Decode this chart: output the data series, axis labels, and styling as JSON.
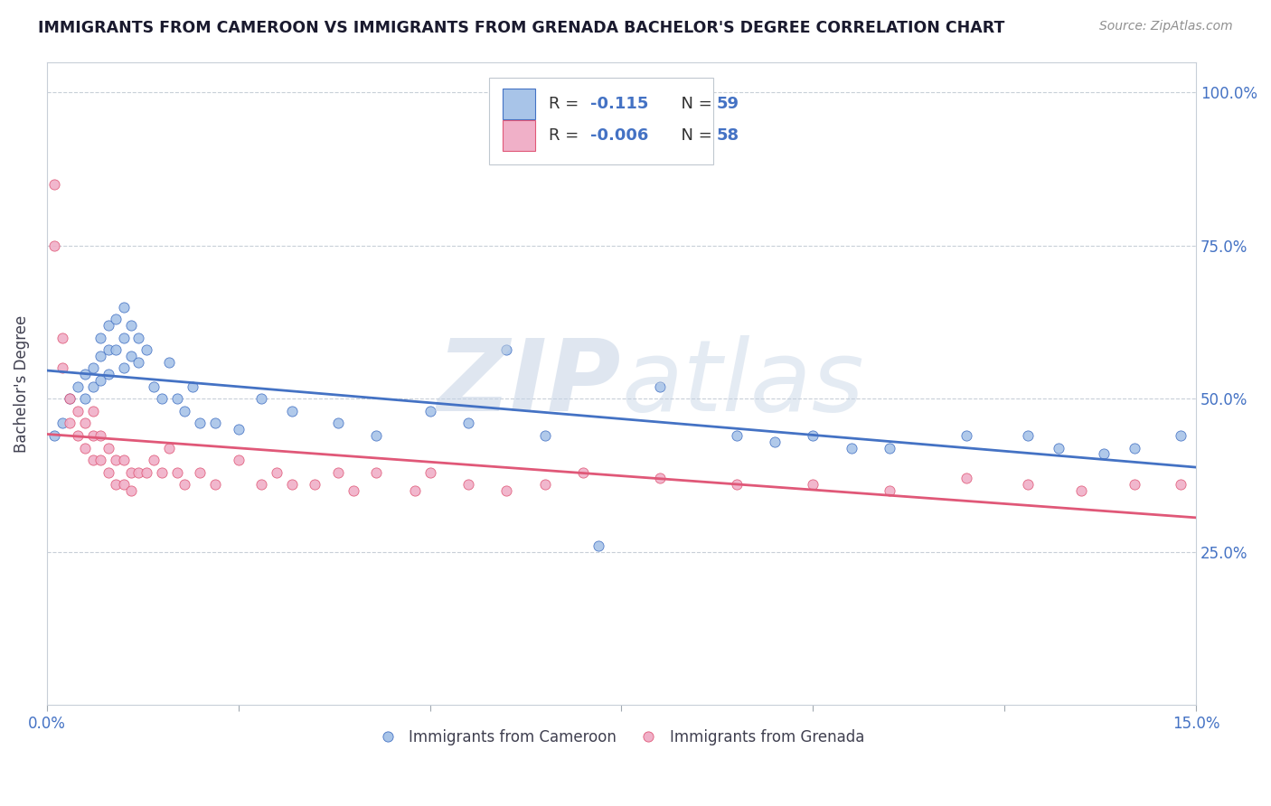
{
  "title": "IMMIGRANTS FROM CAMEROON VS IMMIGRANTS FROM GRENADA BACHELOR'S DEGREE CORRELATION CHART",
  "source": "Source: ZipAtlas.com",
  "ylabel": "Bachelor's Degree",
  "xlim": [
    0.0,
    0.15
  ],
  "ylim": [
    0.0,
    1.05
  ],
  "xticks": [
    0.0,
    0.025,
    0.05,
    0.075,
    0.1,
    0.125,
    0.15
  ],
  "xticklabels": [
    "0.0%",
    "",
    "",
    "",
    "",
    "",
    "15.0%"
  ],
  "ytick_right_labels": [
    "25.0%",
    "50.0%",
    "75.0%",
    "100.0%"
  ],
  "color_cameroon": "#a8c4e8",
  "color_grenada": "#f0b0c8",
  "line_color_cameroon": "#4472c4",
  "line_color_grenada": "#e05878",
  "background_color": "#ffffff",
  "grid_color": "#c8cfd8",
  "cameroon_x": [
    0.001,
    0.002,
    0.003,
    0.004,
    0.005,
    0.005,
    0.006,
    0.006,
    0.007,
    0.007,
    0.007,
    0.008,
    0.008,
    0.008,
    0.009,
    0.009,
    0.01,
    0.01,
    0.01,
    0.011,
    0.011,
    0.012,
    0.012,
    0.013,
    0.014,
    0.015,
    0.016,
    0.017,
    0.018,
    0.019,
    0.02,
    0.022,
    0.025,
    0.028,
    0.032,
    0.038,
    0.043,
    0.05,
    0.055,
    0.06,
    0.065,
    0.072,
    0.08,
    0.09,
    0.095,
    0.1,
    0.105,
    0.11,
    0.12,
    0.128,
    0.132,
    0.138,
    0.142,
    0.148
  ],
  "cameroon_y": [
    0.44,
    0.46,
    0.5,
    0.52,
    0.54,
    0.5,
    0.55,
    0.52,
    0.6,
    0.57,
    0.53,
    0.62,
    0.58,
    0.54,
    0.63,
    0.58,
    0.65,
    0.6,
    0.55,
    0.62,
    0.57,
    0.6,
    0.56,
    0.58,
    0.52,
    0.5,
    0.56,
    0.5,
    0.48,
    0.52,
    0.46,
    0.46,
    0.45,
    0.5,
    0.48,
    0.46,
    0.44,
    0.48,
    0.46,
    0.58,
    0.44,
    0.26,
    0.52,
    0.44,
    0.43,
    0.44,
    0.42,
    0.42,
    0.44,
    0.44,
    0.42,
    0.41,
    0.42,
    0.44
  ],
  "grenada_x": [
    0.001,
    0.001,
    0.002,
    0.002,
    0.003,
    0.003,
    0.004,
    0.004,
    0.005,
    0.005,
    0.006,
    0.006,
    0.006,
    0.007,
    0.007,
    0.008,
    0.008,
    0.009,
    0.009,
    0.01,
    0.01,
    0.011,
    0.011,
    0.012,
    0.013,
    0.014,
    0.015,
    0.016,
    0.017,
    0.018,
    0.02,
    0.022,
    0.025,
    0.028,
    0.03,
    0.032,
    0.035,
    0.038,
    0.04,
    0.043,
    0.048,
    0.05,
    0.055,
    0.06,
    0.065,
    0.07,
    0.08,
    0.09,
    0.1,
    0.11,
    0.12,
    0.128,
    0.135,
    0.142,
    0.148
  ],
  "grenada_y": [
    0.85,
    0.75,
    0.6,
    0.55,
    0.5,
    0.46,
    0.48,
    0.44,
    0.46,
    0.42,
    0.48,
    0.44,
    0.4,
    0.44,
    0.4,
    0.42,
    0.38,
    0.4,
    0.36,
    0.4,
    0.36,
    0.38,
    0.35,
    0.38,
    0.38,
    0.4,
    0.38,
    0.42,
    0.38,
    0.36,
    0.38,
    0.36,
    0.4,
    0.36,
    0.38,
    0.36,
    0.36,
    0.38,
    0.35,
    0.38,
    0.35,
    0.38,
    0.36,
    0.35,
    0.36,
    0.38,
    0.37,
    0.36,
    0.36,
    0.35,
    0.37,
    0.36,
    0.35,
    0.36,
    0.36
  ]
}
